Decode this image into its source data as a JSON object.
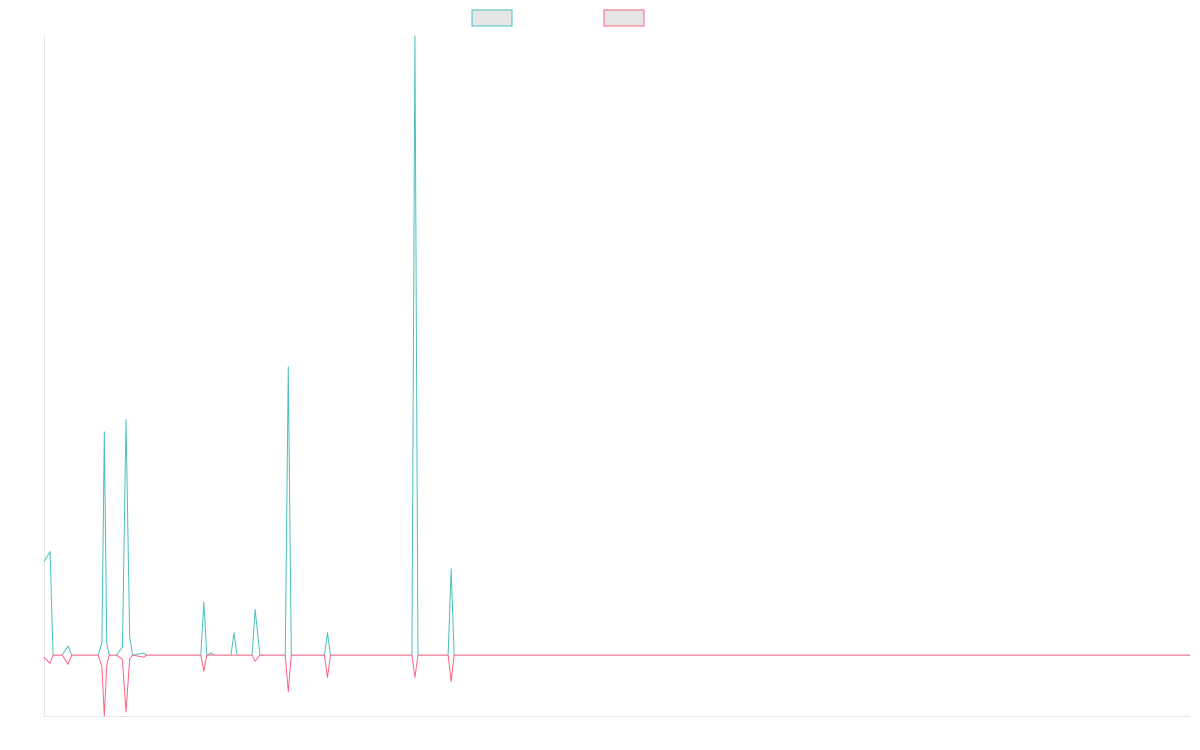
{
  "chart_data": {
    "type": "line",
    "title": "",
    "xlabel": "",
    "ylabel": "",
    "grid": false,
    "legend": "top-center",
    "x_ticks_shown": false,
    "y_ticks_shown": false,
    "x_range": [
      0,
      190
    ],
    "ylim": [
      -60,
      610
    ],
    "baseline": 0,
    "series": [
      {
        "color": "#4bc0c0",
        "points": [
          [
            0,
            92
          ],
          [
            1,
            102
          ],
          [
            1.5,
            0
          ],
          [
            3,
            0
          ],
          [
            4,
            9
          ],
          [
            4.6,
            0
          ],
          [
            7,
            0
          ],
          [
            7.5,
            0
          ],
          [
            9,
            0
          ],
          [
            9.6,
            12
          ],
          [
            10,
            220
          ],
          [
            10.4,
            12
          ],
          [
            10.8,
            0
          ],
          [
            12,
            0
          ],
          [
            13,
            8
          ],
          [
            13.6,
            232
          ],
          [
            14.2,
            18
          ],
          [
            14.7,
            0
          ],
          [
            16.5,
            2
          ],
          [
            17,
            0
          ],
          [
            26,
            0
          ],
          [
            26.5,
            52
          ],
          [
            27,
            0
          ],
          [
            27.8,
            2
          ],
          [
            28.2,
            0
          ],
          [
            31,
            0
          ],
          [
            31.5,
            22
          ],
          [
            32,
            0
          ],
          [
            34.5,
            0
          ],
          [
            35,
            45
          ],
          [
            35.8,
            0
          ],
          [
            40,
            0
          ],
          [
            40.5,
            284
          ],
          [
            41,
            0
          ],
          [
            46.5,
            0
          ],
          [
            47,
            22
          ],
          [
            47.5,
            0
          ],
          [
            61,
            0
          ],
          [
            61.5,
            610
          ],
          [
            62,
            0
          ],
          [
            67,
            0
          ],
          [
            67.5,
            85
          ],
          [
            68,
            0
          ],
          [
            190,
            0
          ]
        ]
      },
      {
        "color": "#ff6384",
        "points": [
          [
            0,
            -2
          ],
          [
            1,
            -8
          ],
          [
            1.5,
            0
          ],
          [
            3,
            0
          ],
          [
            4,
            -9
          ],
          [
            4.6,
            0
          ],
          [
            7,
            0
          ],
          [
            7.5,
            0
          ],
          [
            9,
            0
          ],
          [
            9.6,
            -12
          ],
          [
            10,
            -60
          ],
          [
            10.4,
            -10
          ],
          [
            10.8,
            0
          ],
          [
            12,
            0
          ],
          [
            13,
            -4
          ],
          [
            13.6,
            -56
          ],
          [
            14.2,
            -4
          ],
          [
            14.7,
            0
          ],
          [
            16.5,
            -2
          ],
          [
            17,
            0
          ],
          [
            26,
            0
          ],
          [
            26.5,
            -16
          ],
          [
            27,
            0
          ],
          [
            27.8,
            0
          ],
          [
            28.2,
            0
          ],
          [
            31,
            0
          ],
          [
            31.5,
            0
          ],
          [
            32,
            0
          ],
          [
            34.5,
            0
          ],
          [
            35,
            -6
          ],
          [
            35.8,
            0
          ],
          [
            40,
            0
          ],
          [
            40.5,
            -36
          ],
          [
            41,
            0
          ],
          [
            46.5,
            0
          ],
          [
            47,
            -22
          ],
          [
            47.5,
            0
          ],
          [
            61,
            0
          ],
          [
            61.5,
            -22
          ],
          [
            62,
            0
          ],
          [
            67,
            0
          ],
          [
            67.5,
            -26
          ],
          [
            68,
            0
          ],
          [
            190,
            0
          ]
        ]
      }
    ]
  }
}
